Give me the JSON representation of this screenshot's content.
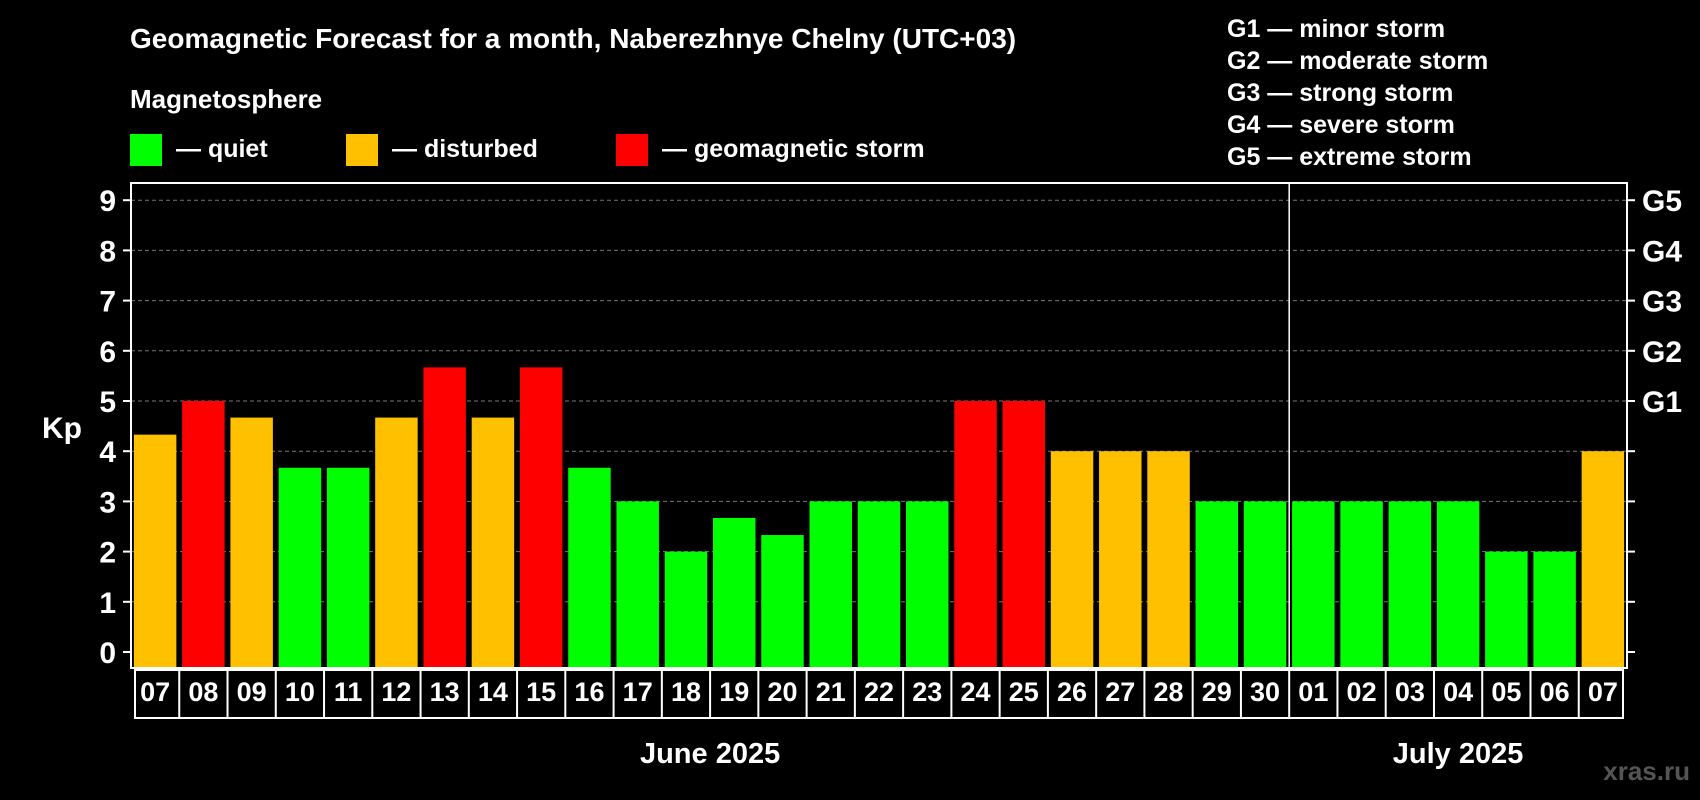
{
  "chart_data": {
    "type": "bar",
    "title": "Geomagnetic Forecast for a month, Naberezhnye Chelny (UTC+03)",
    "legend_title": "Magnetosphere",
    "legend": [
      {
        "label": "— quiet",
        "color": "#00FF00"
      },
      {
        "label": "— disturbed",
        "color": "#FFC000"
      },
      {
        "label": "— geomagnetic storm",
        "color": "#FF0000"
      }
    ],
    "g_scale_legend": [
      "G1 — minor storm",
      "G2 — moderate storm",
      "G3 — strong storm",
      "G4 — severe storm",
      "G5 — extreme storm"
    ],
    "ylabel": "Kp",
    "ylim": [
      0,
      9
    ],
    "yticks": [
      "0",
      "1",
      "2",
      "3",
      "4",
      "5",
      "6",
      "7",
      "8",
      "9"
    ],
    "right_ticks": [
      {
        "value": 5,
        "label": "G1"
      },
      {
        "value": 6,
        "label": "G2"
      },
      {
        "value": 7,
        "label": "G3"
      },
      {
        "value": 8,
        "label": "G4"
      },
      {
        "value": 9,
        "label": "G5"
      }
    ],
    "categories": [
      "07",
      "08",
      "09",
      "10",
      "11",
      "12",
      "13",
      "14",
      "15",
      "16",
      "17",
      "18",
      "19",
      "20",
      "21",
      "22",
      "23",
      "24",
      "25",
      "26",
      "27",
      "28",
      "29",
      "30",
      "01",
      "02",
      "03",
      "04",
      "05",
      "06",
      "07"
    ],
    "values": [
      4.33,
      5,
      4.67,
      3.67,
      3.67,
      4.67,
      5.67,
      4.67,
      5.67,
      3.67,
      3,
      2,
      2.67,
      2.33,
      3,
      3,
      3,
      5,
      5,
      4,
      4,
      4,
      3,
      3,
      3,
      3,
      3,
      3,
      2,
      2,
      4
    ],
    "status": [
      "disturbed",
      "storm",
      "disturbed",
      "quiet",
      "quiet",
      "disturbed",
      "storm",
      "disturbed",
      "storm",
      "quiet",
      "quiet",
      "quiet",
      "quiet",
      "quiet",
      "quiet",
      "quiet",
      "quiet",
      "storm",
      "storm",
      "disturbed",
      "disturbed",
      "disturbed",
      "quiet",
      "quiet",
      "quiet",
      "quiet",
      "quiet",
      "quiet",
      "quiet",
      "quiet",
      "disturbed"
    ],
    "month_divider_after": "30",
    "months": [
      {
        "label": "June 2025",
        "first": "07",
        "last": "30"
      },
      {
        "label": "July 2025",
        "first": "01",
        "last": "07"
      }
    ],
    "colors": {
      "quiet": "#00FF00",
      "disturbed": "#FFC000",
      "storm": "#FF0000",
      "background": "#000000",
      "axis": "#FFFFFF"
    }
  },
  "watermark": "xras.ru"
}
